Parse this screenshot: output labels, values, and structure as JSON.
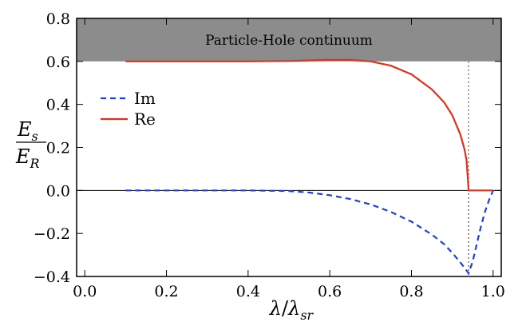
{
  "chart_data": {
    "type": "line",
    "title": "",
    "xlabel": {
      "base": "λ",
      "sep": "/",
      "base2": "λ",
      "sub": "sr"
    },
    "ylabel": {
      "num": "E",
      "num_sub": "s",
      "den": "E",
      "den_sub": "R"
    },
    "xlim": [
      -0.02,
      1.02
    ],
    "ylim": [
      -0.4,
      0.8
    ],
    "x_ticks": [
      0.0,
      0.2,
      0.4,
      0.6,
      0.8,
      1.0
    ],
    "x_tick_labels": [
      "0.0",
      "0.2",
      "0.4",
      "0.6",
      "0.8",
      "1.0"
    ],
    "y_ticks": [
      -0.4,
      -0.2,
      0.0,
      0.2,
      0.4,
      0.6,
      0.8
    ],
    "y_tick_labels": [
      "−0.4",
      "−0.2",
      "0.0",
      "0.2",
      "0.4",
      "0.6",
      "0.8"
    ],
    "grid": false,
    "legend_position": "left",
    "band": {
      "y_from": 0.6,
      "y_to": 0.8,
      "label": "Particle-Hole continuum",
      "color": "#8c8c8c"
    },
    "vline": {
      "x": 0.94,
      "style": "dotted",
      "color": "#777777"
    },
    "hline": {
      "y": 0.0,
      "color": "#000000"
    },
    "series": [
      {
        "name": "Im",
        "style": "dashed",
        "color": "#1f3fe0",
        "points": [
          [
            0.1,
            0.0
          ],
          [
            0.2,
            0.0
          ],
          [
            0.3,
            0.0
          ],
          [
            0.4,
            0.0
          ],
          [
            0.5,
            -0.003
          ],
          [
            0.55,
            -0.01
          ],
          [
            0.6,
            -0.022
          ],
          [
            0.65,
            -0.04
          ],
          [
            0.7,
            -0.065
          ],
          [
            0.75,
            -0.1
          ],
          [
            0.8,
            -0.145
          ],
          [
            0.85,
            -0.205
          ],
          [
            0.88,
            -0.25
          ],
          [
            0.9,
            -0.29
          ],
          [
            0.92,
            -0.335
          ],
          [
            0.93,
            -0.36
          ],
          [
            0.94,
            -0.385
          ],
          [
            0.95,
            -0.33
          ],
          [
            0.96,
            -0.25
          ],
          [
            0.97,
            -0.17
          ],
          [
            0.98,
            -0.1
          ],
          [
            0.99,
            -0.045
          ],
          [
            1.0,
            0.0
          ]
        ]
      },
      {
        "name": "Re",
        "style": "solid",
        "color": "#e0301e",
        "points": [
          [
            0.1,
            0.6
          ],
          [
            0.2,
            0.6
          ],
          [
            0.3,
            0.6
          ],
          [
            0.4,
            0.6
          ],
          [
            0.5,
            0.602
          ],
          [
            0.6,
            0.607
          ],
          [
            0.65,
            0.607
          ],
          [
            0.7,
            0.6
          ],
          [
            0.75,
            0.58
          ],
          [
            0.8,
            0.54
          ],
          [
            0.85,
            0.47
          ],
          [
            0.88,
            0.41
          ],
          [
            0.9,
            0.35
          ],
          [
            0.92,
            0.26
          ],
          [
            0.93,
            0.19
          ],
          [
            0.935,
            0.14
          ],
          [
            0.94,
            0.0
          ],
          [
            0.97,
            0.0
          ],
          [
            1.0,
            0.0
          ]
        ]
      }
    ]
  }
}
